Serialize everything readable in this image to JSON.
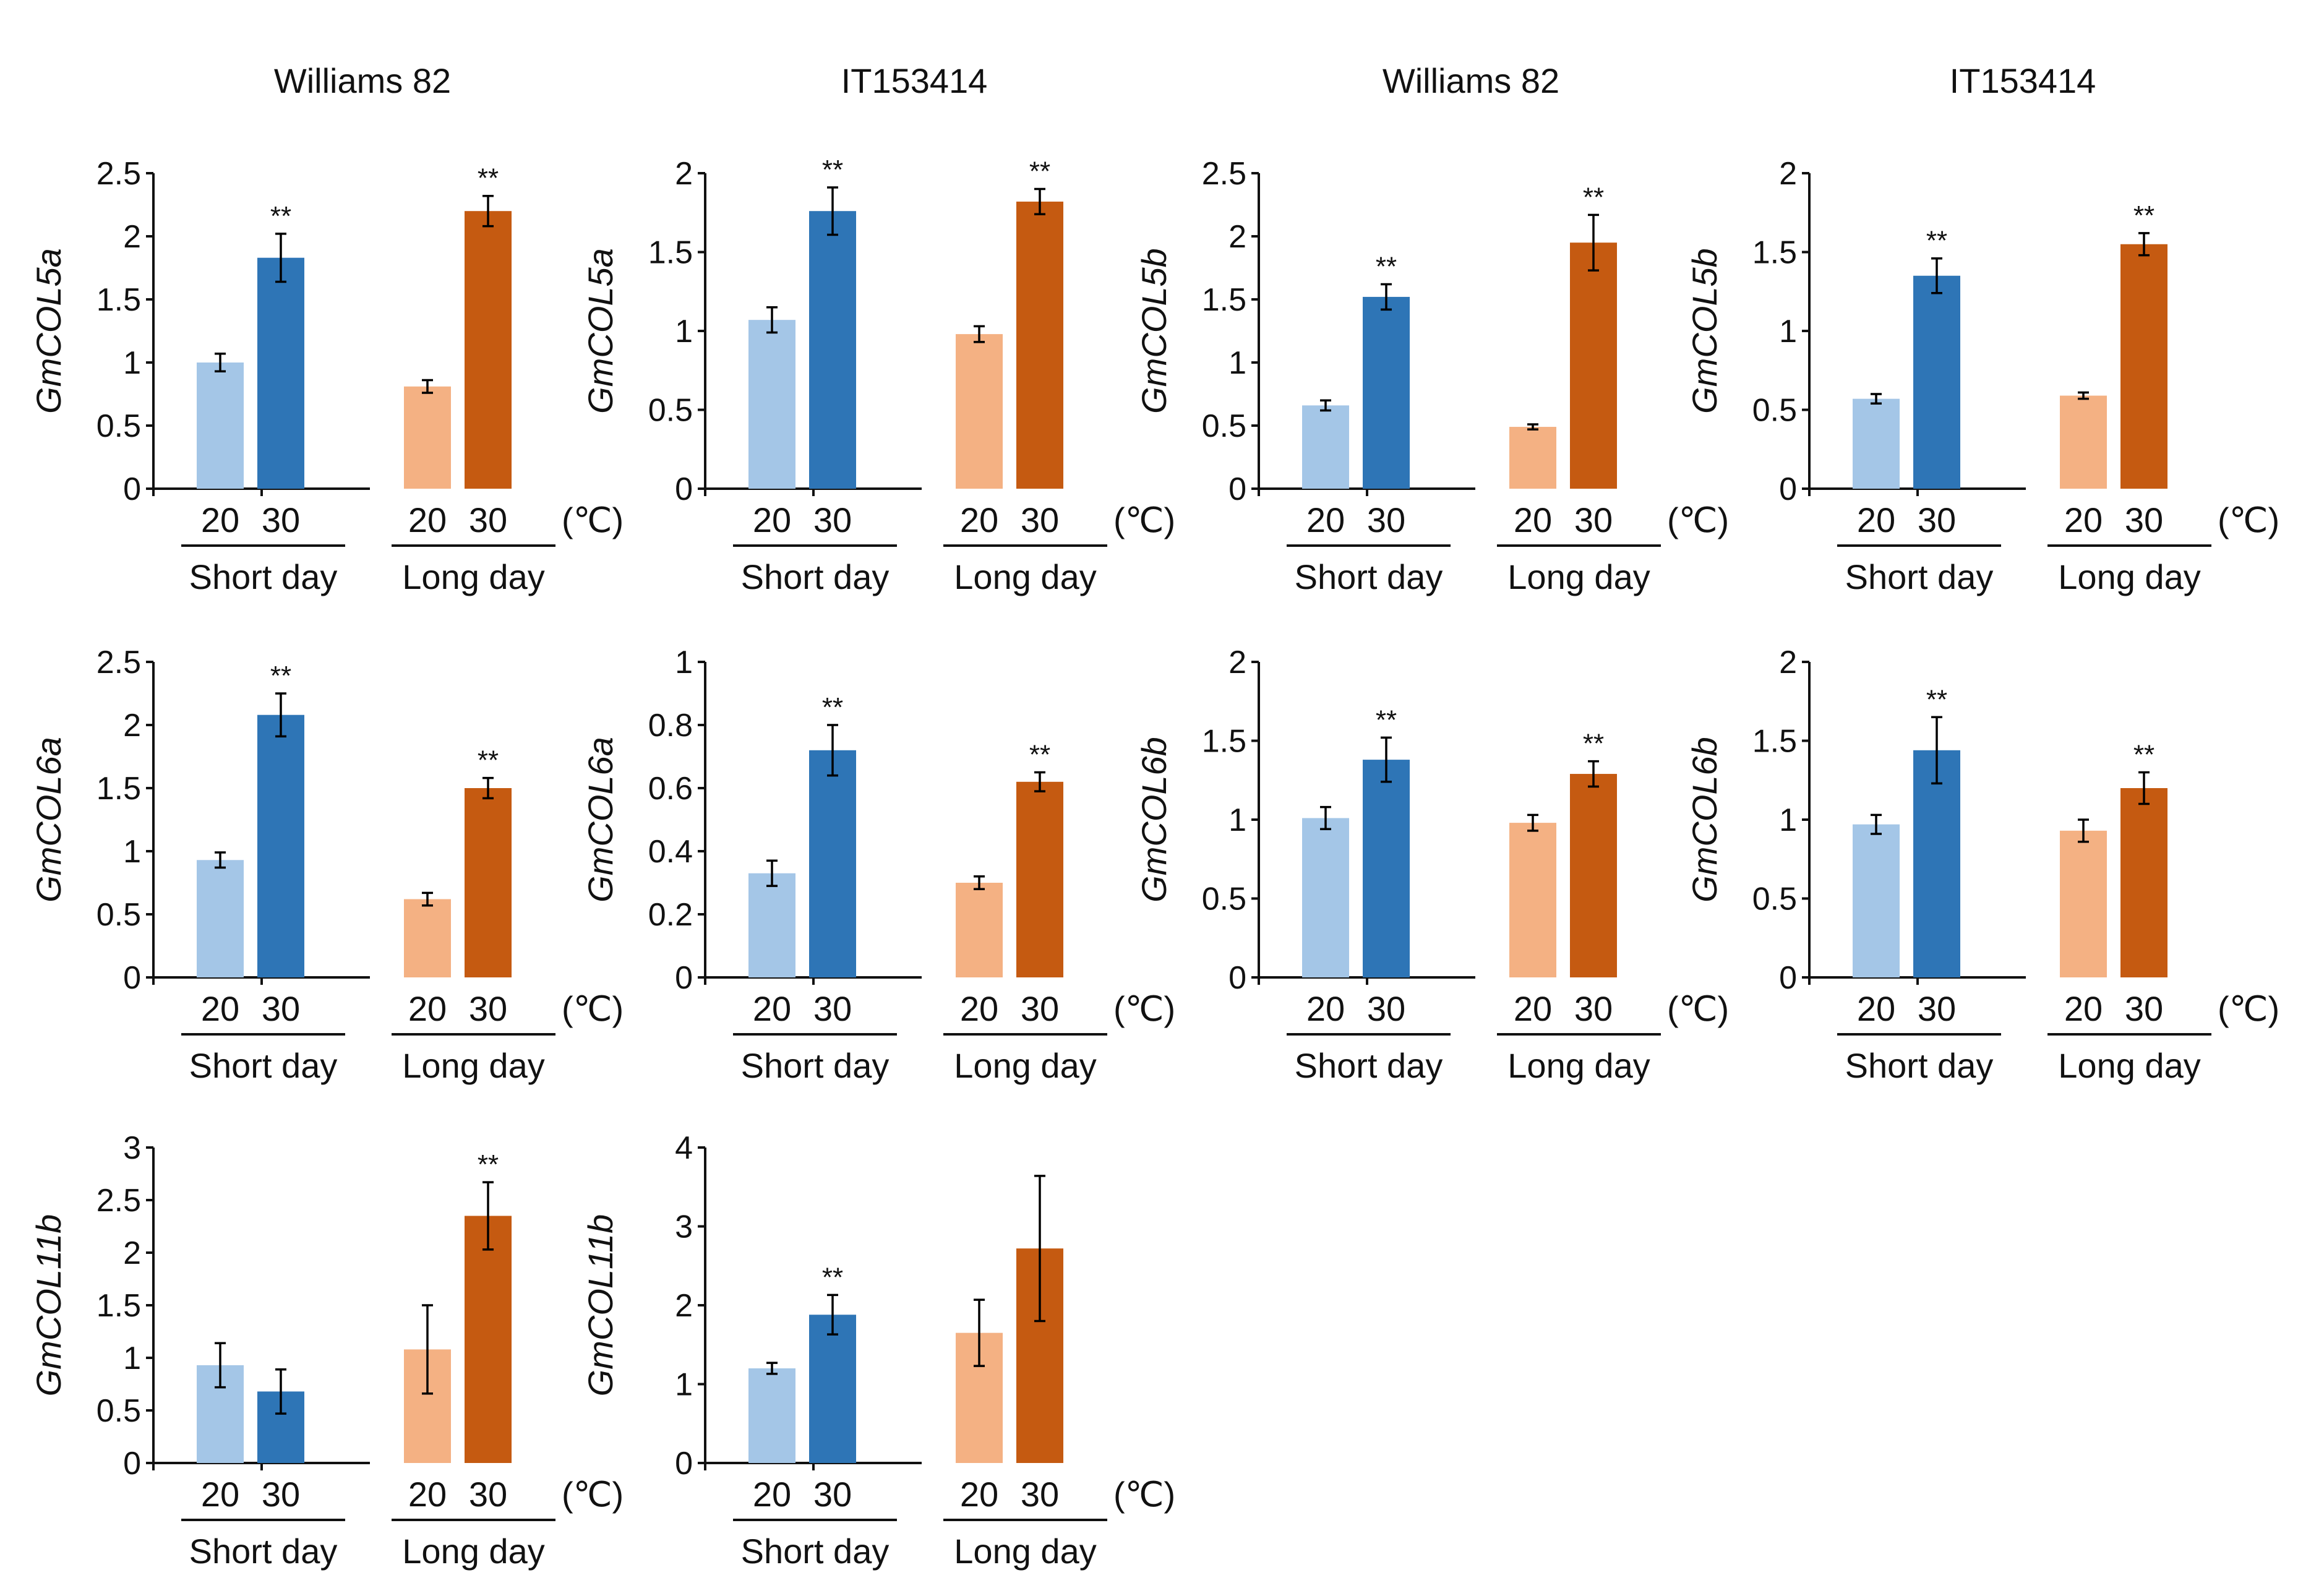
{
  "figure": {
    "column_titles": [
      "Williams 82",
      "IT153414",
      "Williams 82",
      "IT153414"
    ]
  },
  "colors": {
    "short_20": "#a4c6e7",
    "short_30": "#2e75b6",
    "long_20": "#f4b183",
    "long_30": "#c55a11",
    "axis": "#111111"
  },
  "chart_data": [
    {
      "type": "bar",
      "title": "Williams 82",
      "ylabel": "GmCOL5a",
      "ylim": [
        0,
        2.5
      ],
      "yticks": [
        0,
        0.5,
        1,
        1.5,
        2,
        2.5
      ],
      "ytick_labels": [
        "0",
        "0.5",
        "1",
        "1.5",
        "2",
        "2.5"
      ],
      "categories": [
        "20",
        "30",
        "20",
        "30"
      ],
      "groups": [
        "Short day",
        "Long day"
      ],
      "unit": "(℃)",
      "values": [
        1.0,
        1.83,
        0.81,
        2.2
      ],
      "errors": [
        0.07,
        0.19,
        0.05,
        0.12
      ],
      "significance": [
        "",
        "**",
        "",
        "**"
      ]
    },
    {
      "type": "bar",
      "title": "IT153414",
      "ylabel": "GmCOL5a",
      "ylim": [
        0,
        2
      ],
      "yticks": [
        0,
        0.5,
        1,
        1.5,
        2
      ],
      "ytick_labels": [
        "0",
        "0.5",
        "1",
        "1.5",
        "2"
      ],
      "categories": [
        "20",
        "30",
        "20",
        "30"
      ],
      "groups": [
        "Short day",
        "Long day"
      ],
      "unit": "(℃)",
      "values": [
        1.07,
        1.76,
        0.98,
        1.82
      ],
      "errors": [
        0.08,
        0.15,
        0.05,
        0.08
      ],
      "significance": [
        "",
        "**",
        "",
        "**"
      ]
    },
    {
      "type": "bar",
      "title": "Williams 82",
      "ylabel": "GmCOL5b",
      "ylim": [
        0,
        2.5
      ],
      "yticks": [
        0,
        0.5,
        1,
        1.5,
        2,
        2.5
      ],
      "ytick_labels": [
        "0",
        "0.5",
        "1",
        "1.5",
        "2",
        "2.5"
      ],
      "categories": [
        "20",
        "30",
        "20",
        "30"
      ],
      "groups": [
        "Short day",
        "Long day"
      ],
      "unit": "(℃)",
      "values": [
        0.66,
        1.52,
        0.49,
        1.95
      ],
      "errors": [
        0.04,
        0.1,
        0.02,
        0.22
      ],
      "significance": [
        "",
        "**",
        "",
        "**"
      ]
    },
    {
      "type": "bar",
      "title": "IT153414",
      "ylabel": "GmCOL5b",
      "ylim": [
        0,
        2
      ],
      "yticks": [
        0,
        0.5,
        1,
        1.5,
        2
      ],
      "ytick_labels": [
        "0",
        "0.5",
        "1",
        "1.5",
        "2"
      ],
      "categories": [
        "20",
        "30",
        "20",
        "30"
      ],
      "groups": [
        "Short day",
        "Long day"
      ],
      "unit": "(℃)",
      "values": [
        0.57,
        1.35,
        0.59,
        1.55
      ],
      "errors": [
        0.03,
        0.11,
        0.02,
        0.07
      ],
      "significance": [
        "",
        "**",
        "",
        "**"
      ]
    },
    {
      "type": "bar",
      "title": "Williams 82",
      "ylabel": "GmCOL6a",
      "ylim": [
        0,
        2.5
      ],
      "yticks": [
        0,
        0.5,
        1,
        1.5,
        2,
        2.5
      ],
      "ytick_labels": [
        "0",
        "0.5",
        "1",
        "1.5",
        "2",
        "2.5"
      ],
      "categories": [
        "20",
        "30",
        "20",
        "30"
      ],
      "groups": [
        "Short day",
        "Long day"
      ],
      "unit": "(℃)",
      "values": [
        0.93,
        2.08,
        0.62,
        1.5
      ],
      "errors": [
        0.06,
        0.17,
        0.05,
        0.08
      ],
      "significance": [
        "",
        "**",
        "",
        "**"
      ]
    },
    {
      "type": "bar",
      "title": "IT153414",
      "ylabel": "GmCOL6a",
      "ylim": [
        0,
        1
      ],
      "yticks": [
        0,
        0.2,
        0.4,
        0.6,
        0.8,
        1
      ],
      "ytick_labels": [
        "0",
        "0.2",
        "0.4",
        "0.6",
        "0.8",
        "1"
      ],
      "categories": [
        "20",
        "30",
        "20",
        "30"
      ],
      "groups": [
        "Short day",
        "Long day"
      ],
      "unit": "(℃)",
      "values": [
        0.33,
        0.72,
        0.3,
        0.62
      ],
      "errors": [
        0.04,
        0.08,
        0.02,
        0.03
      ],
      "significance": [
        "",
        "**",
        "",
        "**"
      ]
    },
    {
      "type": "bar",
      "title": "Williams 82",
      "ylabel": "GmCOL6b",
      "ylim": [
        0,
        2
      ],
      "yticks": [
        0,
        0.5,
        1,
        1.5,
        2
      ],
      "ytick_labels": [
        "0",
        "0.5",
        "1",
        "1.5",
        "2"
      ],
      "categories": [
        "20",
        "30",
        "20",
        "30"
      ],
      "groups": [
        "Short day",
        "Long day"
      ],
      "unit": "(℃)",
      "values": [
        1.01,
        1.38,
        0.98,
        1.29
      ],
      "errors": [
        0.07,
        0.14,
        0.05,
        0.08
      ],
      "significance": [
        "",
        "**",
        "",
        "**"
      ]
    },
    {
      "type": "bar",
      "title": "IT153414",
      "ylabel": "GmCOL6b",
      "ylim": [
        0,
        2
      ],
      "yticks": [
        0,
        0.5,
        1,
        1.5,
        2
      ],
      "ytick_labels": [
        "0",
        "0.5",
        "1",
        "1.5",
        "2"
      ],
      "categories": [
        "20",
        "30",
        "20",
        "30"
      ],
      "groups": [
        "Short day",
        "Long day"
      ],
      "unit": "(℃)",
      "values": [
        0.97,
        1.44,
        0.93,
        1.2
      ],
      "errors": [
        0.06,
        0.21,
        0.07,
        0.1
      ],
      "significance": [
        "",
        "**",
        "",
        "**"
      ]
    },
    {
      "type": "bar",
      "title": "Williams 82",
      "ylabel": "GmCOL11b",
      "ylim": [
        0,
        3
      ],
      "yticks": [
        0,
        0.5,
        1,
        1.5,
        2,
        2.5,
        3
      ],
      "ytick_labels": [
        "0",
        "0.5",
        "1",
        "1.5",
        "2",
        "2.5",
        "3"
      ],
      "categories": [
        "20",
        "30",
        "20",
        "30"
      ],
      "groups": [
        "Short day",
        "Long day"
      ],
      "unit": "(℃)",
      "values": [
        0.93,
        0.68,
        1.08,
        2.35
      ],
      "errors": [
        0.21,
        0.21,
        0.42,
        0.32
      ],
      "significance": [
        "",
        "",
        "",
        "**"
      ]
    },
    {
      "type": "bar",
      "title": "IT153414",
      "ylabel": "GmCOL11b",
      "ylim": [
        0,
        4
      ],
      "yticks": [
        0,
        1,
        2,
        3,
        4
      ],
      "ytick_labels": [
        "0",
        "1",
        "2",
        "3",
        "4"
      ],
      "categories": [
        "20",
        "30",
        "20",
        "30"
      ],
      "groups": [
        "Short day",
        "Long day"
      ],
      "unit": "(℃)",
      "values": [
        1.2,
        1.88,
        1.65,
        2.72
      ],
      "errors": [
        0.07,
        0.25,
        0.42,
        0.92
      ],
      "significance": [
        "",
        "**",
        "",
        ""
      ]
    }
  ]
}
